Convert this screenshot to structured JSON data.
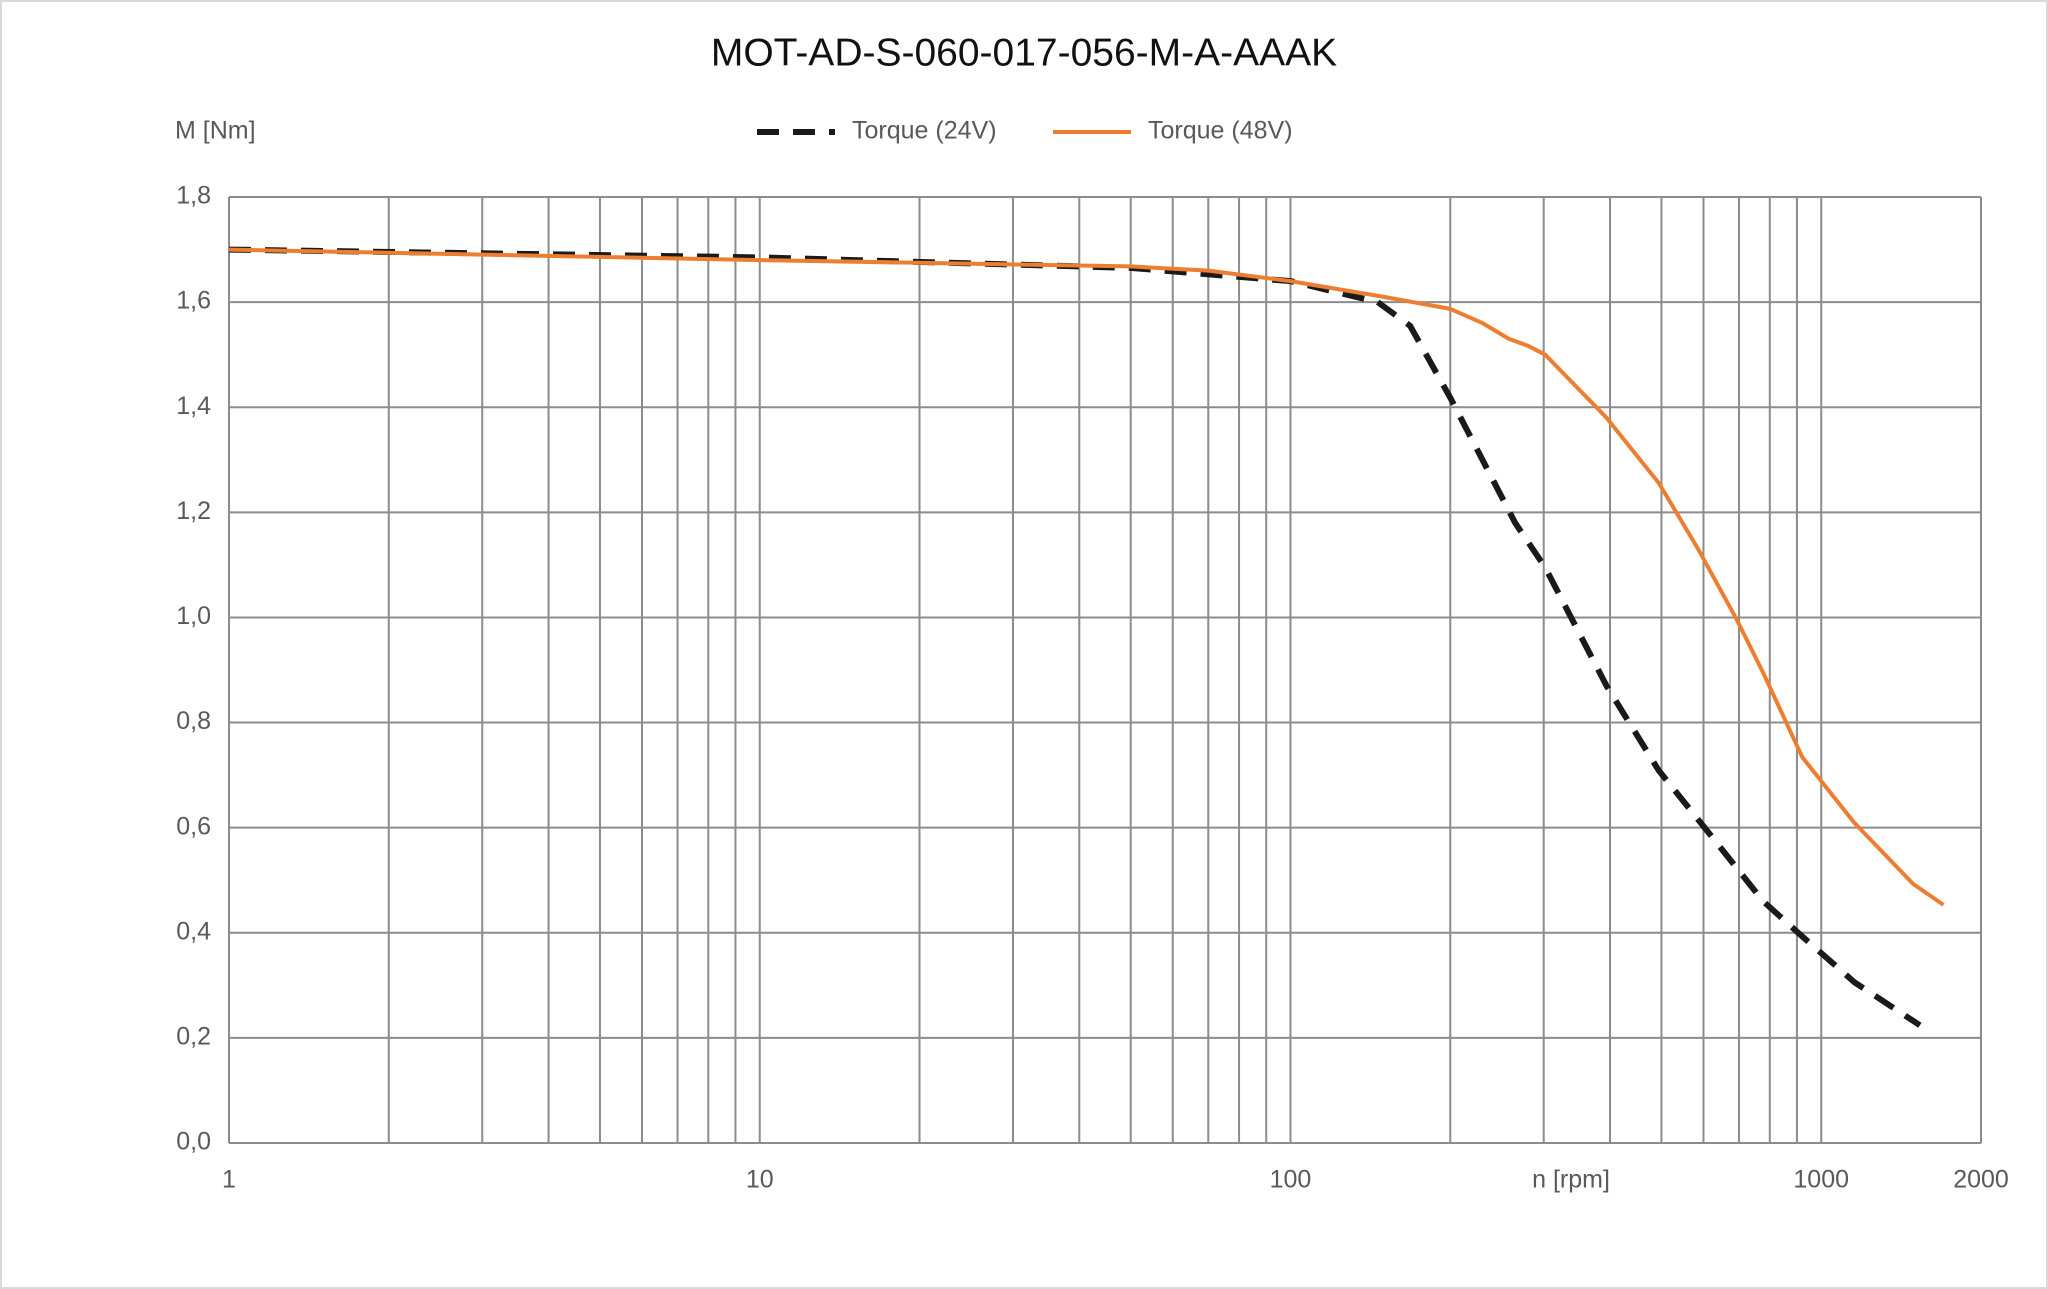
{
  "chart_data": {
    "type": "line",
    "title": "MOT-AD-S-060-017-056-M-A-AAAK",
    "y_label": "M [Nm]",
    "x_label": "n [rpm]",
    "xscale": "log",
    "grid": true,
    "xlim": [
      1,
      2000
    ],
    "xticks": [
      1,
      10,
      100,
      1000,
      2000
    ],
    "xminorticks": [
      2,
      3,
      4,
      5,
      6,
      7,
      8,
      9,
      20,
      30,
      40,
      50,
      60,
      70,
      80,
      90,
      200,
      300,
      400,
      500,
      600,
      700,
      800,
      900
    ],
    "ylim": [
      0,
      1.8
    ],
    "yticks": [
      {
        "value": 0,
        "label": "0,0"
      },
      {
        "value": 0.2,
        "label": "0,2"
      },
      {
        "value": 0.4,
        "label": "0,4"
      },
      {
        "value": 0.6,
        "label": "0,6"
      },
      {
        "value": 0.8,
        "label": "0,8"
      },
      {
        "value": 1.0,
        "label": "1,0"
      },
      {
        "value": 1.2,
        "label": "1,2"
      },
      {
        "value": 1.4,
        "label": "1,4"
      },
      {
        "value": 1.6,
        "label": "1,6"
      },
      {
        "value": 1.8,
        "label": "1,8"
      }
    ],
    "series": [
      {
        "name": "Torque (24V)",
        "color": "#1a1a1a",
        "dash": "dashed",
        "x": [
          1,
          10,
          50,
          100,
          146,
          168,
          200,
          265,
          302,
          394,
          494,
          620,
          777,
          921,
          1155,
          1534
        ],
        "values": [
          1.7,
          1.685,
          1.665,
          1.64,
          1.6,
          1.555,
          1.418,
          1.18,
          1.095,
          0.87,
          0.709,
          0.585,
          0.46,
          0.393,
          0.306,
          0.224
        ]
      },
      {
        "name": "Torque (48V)",
        "color": "#ed7d31",
        "dash": "solid",
        "x": [
          1,
          10,
          50,
          70,
          100,
          150,
          200,
          230,
          258,
          280,
          302,
          394,
          494,
          585,
          694,
          777,
          921,
          1155,
          1490,
          1700
        ],
        "values": [
          1.7,
          1.68,
          1.668,
          1.66,
          1.64,
          1.61,
          1.587,
          1.56,
          1.53,
          1.517,
          1.5,
          1.38,
          1.256,
          1.132,
          0.995,
          0.895,
          0.734,
          0.609,
          0.493,
          0.453
        ]
      }
    ]
  }
}
